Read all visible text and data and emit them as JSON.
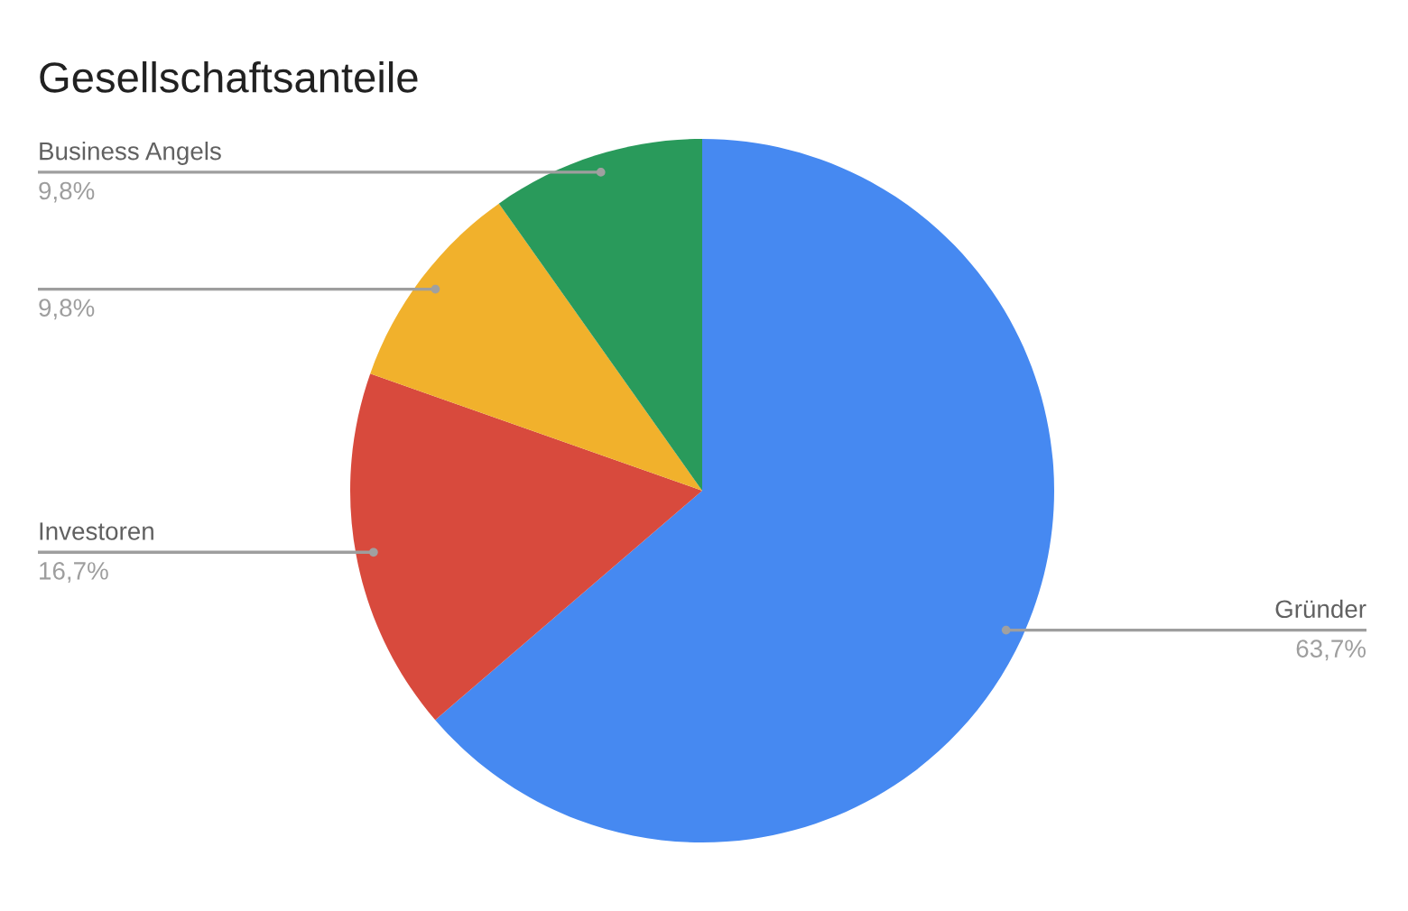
{
  "chart_data": {
    "type": "pie",
    "title": "Gesellschaftsanteile",
    "categories": [
      "Gründer",
      "Investoren",
      null,
      "Business Angels"
    ],
    "values": [
      63.7,
      16.7,
      9.8,
      9.8
    ],
    "colors": [
      "#4689f1",
      "#d84a3d",
      "#f1b12c",
      "#299a5b"
    ],
    "value_labels": [
      "63,7%",
      "16,7%",
      "9,8%",
      "9,8%"
    ]
  }
}
